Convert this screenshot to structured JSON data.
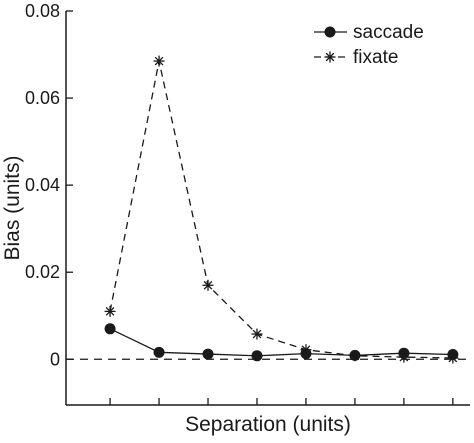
{
  "chart_data": {
    "type": "line",
    "title": "",
    "xlabel": "Separation (units)",
    "ylabel": "Bias (units)",
    "x": [
      1,
      2,
      3,
      4,
      5,
      6,
      7,
      8
    ],
    "xlim": [
      0.1,
      8.35
    ],
    "ylim": [
      -0.0105,
      0.08
    ],
    "yticks": [
      0,
      0.02,
      0.04,
      0.06,
      0.08
    ],
    "ytick_labels": [
      "0",
      "0.02",
      "0.04",
      "0.06",
      "0.08"
    ],
    "zero_line": true,
    "grid": false,
    "legend_position": "top-right",
    "series": [
      {
        "name": "saccade",
        "style": "solid",
        "marker": "filled-circle",
        "color": "#1a1a1a",
        "values": [
          0.007,
          0.0016,
          0.0012,
          0.0008,
          0.0013,
          0.0009,
          0.0014,
          0.0011
        ]
      },
      {
        "name": "fixate",
        "style": "dashed",
        "marker": "asterisk",
        "color": "#1a1a1a",
        "values": [
          0.011,
          0.0685,
          0.017,
          0.0058,
          0.0022,
          0.0008,
          0.0005,
          0.0003
        ]
      }
    ]
  }
}
